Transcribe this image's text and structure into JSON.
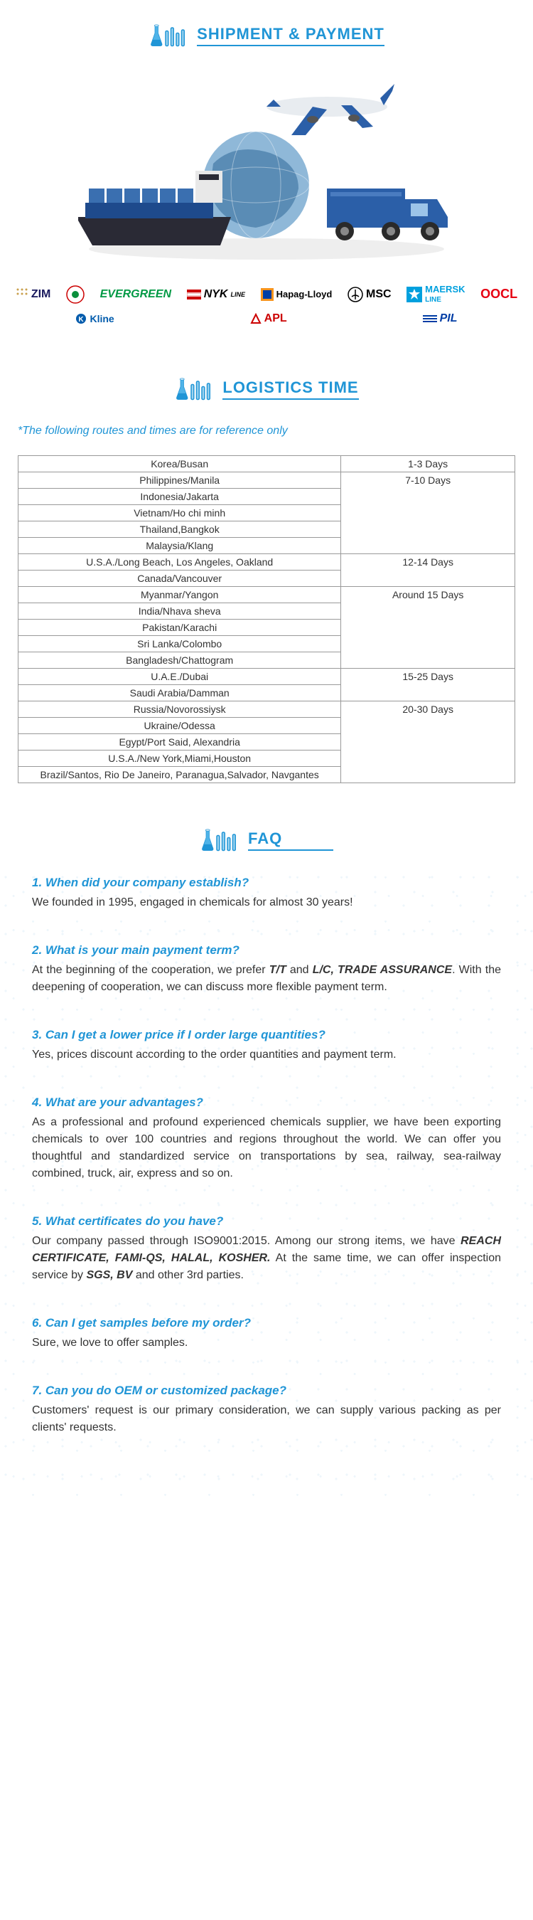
{
  "headers": {
    "shipment": "SHIPMENT & PAYMENT",
    "logistics": "LOGISTICS TIME",
    "faq": "FAQ"
  },
  "colors": {
    "accent": "#2095d6",
    "evergreen": "#009944",
    "oocl": "#e60012",
    "maersk": "#00a0de",
    "kline": "#005bac",
    "apl": "#c00",
    "pil": "#003da5",
    "border": "#999999",
    "text": "#333333"
  },
  "carriers": [
    "ZIM",
    "EVERGREEN",
    "NYK LINE",
    "Hapag-Lloyd",
    "MSC",
    "MAERSK LINE",
    "OOCL",
    "Kline",
    "APL",
    "PIL"
  ],
  "logistics_note": "*The following routes and times are for reference only",
  "logistics_groups": [
    {
      "time": "1-3 Days",
      "routes": [
        "Korea/Busan"
      ]
    },
    {
      "time": "7-10 Days",
      "routes": [
        "Philippines/Manila",
        "Indonesia/Jakarta",
        "Vietnam/Ho chi minh",
        "Thailand,Bangkok",
        "Malaysia/Klang"
      ]
    },
    {
      "time": "12-14 Days",
      "routes": [
        "U.S.A./Long Beach, Los Angeles, Oakland",
        "Canada/Vancouver"
      ]
    },
    {
      "time": "Around 15 Days",
      "routes": [
        "Myanmar/Yangon",
        "India/Nhava sheva",
        "Pakistan/Karachi",
        "Sri Lanka/Colombo",
        "Bangladesh/Chattogram"
      ]
    },
    {
      "time": "15-25 Days",
      "routes": [
        "U.A.E./Dubai",
        "Saudi Arabia/Damman"
      ]
    },
    {
      "time": "20-30 Days",
      "routes": [
        "Russia/Novorossiysk",
        "Ukraine/Odessa",
        "Egypt/Port Said, Alexandria",
        "U.S.A./New York,Miami,Houston",
        "Brazil/Santos, Rio De Janeiro, Paranagua,Salvador, Navgantes"
      ]
    }
  ],
  "faq": [
    {
      "q": "1. When did your company establish?",
      "a_html": "We founded in 1995, engaged in chemicals for almost 30 years!"
    },
    {
      "q": "2. What is your main payment term?",
      "a_html": "At the beginning of the cooperation, we prefer <span class='bold'>T/T</span> and <span class='bold'>L/C, TRADE ASSURANCE</span>. With the deepening of cooperation, we can discuss more flexible payment term."
    },
    {
      "q": "3. Can I get a lower price if I order large quantities?",
      "a_html": "Yes, prices discount according to the order quantities and payment term."
    },
    {
      "q": "4. What are your advantages?",
      "a_html": "As a professional and profound experienced chemicals supplier, we have been exporting chemicals to over 100 countries and regions throughout the world. We can offer you thoughtful and standardized service on transportations by sea, railway, sea-railway combined, truck, air, express and so on."
    },
    {
      "q": "5. What certificates do you have?",
      "a_html": "Our company passed through ISO9001:2015. Among our strong items, we have <span class='bold'>REACH CERTIFICATE, FAMI-QS, HALAL, KOSHER.</span> At the same time, we can offer inspection service by <span class='bold'>SGS, BV</span> and other 3rd parties."
    },
    {
      "q": "6. Can I get samples before my order?",
      "a_html": "Sure, we love to offer samples."
    },
    {
      "q": "7. Can you do OEM or customized package?",
      "a_html": "Customers' request is our primary consideration, we can supply various packing as per clients' requests."
    }
  ]
}
